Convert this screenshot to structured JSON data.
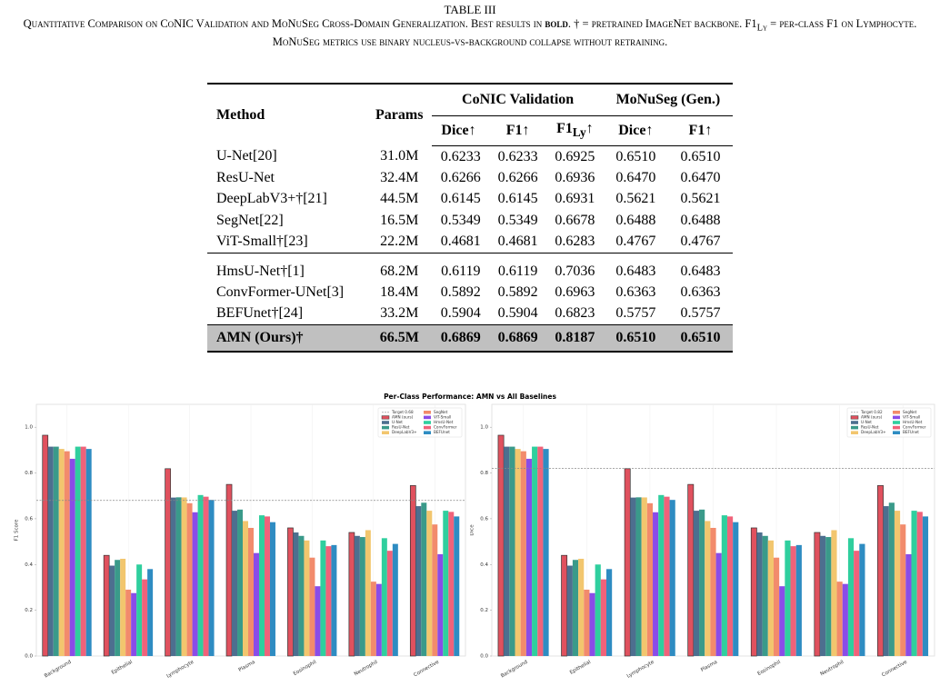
{
  "caption": {
    "label": "TABLE III",
    "segments": [
      "Quantitative Comparison on CoNIC Validation and MoNuSeg Cross-Domain Generalization. Best results in ",
      "bold",
      ". † = pretrained ImageNet backbone. F1",
      "Ly",
      " = per-class F1 on Lymphocyte. MoNuSeg metrics use binary nucleus-vs-background collapse without retraining."
    ]
  },
  "table": {
    "method": "Method",
    "params": "Params",
    "group1": "CoNIC Validation",
    "group2": "MoNuSeg (Gen.)",
    "sub": [
      "Dice↑",
      "F1↑",
      {
        "base": "F1",
        "sub": "Ly",
        "arrow": "↑"
      },
      "Dice↑",
      "F1↑"
    ],
    "groups": [
      [
        [
          "U-Net[20]",
          "31.0M",
          "0.6233",
          "0.6233",
          "0.6925",
          "0.6510",
          "0.6510"
        ],
        [
          "ResU-Net",
          "32.4M",
          "0.6266",
          "0.6266",
          "0.6936",
          "0.6470",
          "0.6470"
        ],
        [
          "DeepLabV3+†[21]",
          "44.5M",
          "0.6145",
          "0.6145",
          "0.6931",
          "0.5621",
          "0.5621"
        ],
        [
          "SegNet[22]",
          "16.5M",
          "0.5349",
          "0.5349",
          "0.6678",
          "0.6488",
          "0.6488"
        ],
        [
          "ViT-Small†[23]",
          "22.2M",
          "0.4681",
          "0.4681",
          "0.6283",
          "0.4767",
          "0.4767"
        ]
      ],
      [
        [
          "HmsU-Net†[1]",
          "68.2M",
          "0.6119",
          "0.6119",
          "0.7036",
          "0.6483",
          "0.6483"
        ],
        [
          "ConvFormer-UNet[3]",
          "18.4M",
          "0.5892",
          "0.5892",
          "0.6963",
          "0.6363",
          "0.6363"
        ],
        [
          "BEFUnet†[24]",
          "33.2M",
          "0.5904",
          "0.5904",
          "0.6823",
          "0.5757",
          "0.5757"
        ]
      ],
      [
        [
          "AMN (Ours)†",
          "66.5M",
          "0.6869",
          "0.6869",
          "0.8187",
          "0.6510",
          "0.6510"
        ]
      ]
    ]
  },
  "figure": {
    "title": "Per-Class Performance: AMN vs All Baselines"
  },
  "chart_data": [
    {
      "type": "bar",
      "ylabel": "F1 Score",
      "ylim": [
        0,
        1.1
      ],
      "yticks": [
        {
          "value": 0,
          "label": "0.0"
        },
        0.2,
        0.4,
        0.6,
        0.8,
        {
          "value": 1,
          "label": "1.0"
        }
      ],
      "target": {
        "name": "Target 0.68",
        "value": 0.68
      },
      "legend": "upper right",
      "categories": [
        "Background",
        "Epithelial",
        "Lymphocyte",
        "Plasma",
        "Eosinophil",
        "Neutrophil",
        "Connective"
      ],
      "series": [
        {
          "name": "AMN (ours)",
          "color": "#e0515e",
          "values": [
            0.965,
            0.44,
            0.8187,
            0.75,
            0.56,
            0.54,
            0.745
          ]
        },
        {
          "name": "U-Net",
          "color": "#4d6f8f",
          "values": [
            0.915,
            0.395,
            0.6925,
            0.635,
            0.54,
            0.525,
            0.655
          ]
        },
        {
          "name": "ResU-Net",
          "color": "#3a9a8a",
          "values": [
            0.915,
            0.42,
            0.6936,
            0.64,
            0.525,
            0.52,
            0.67
          ]
        },
        {
          "name": "DeepLabV3+",
          "color": "#f2c66e",
          "values": [
            0.905,
            0.425,
            0.6931,
            0.59,
            0.505,
            0.55,
            0.635
          ]
        },
        {
          "name": "SegNet",
          "color": "#f28b6c",
          "values": [
            0.895,
            0.29,
            0.6678,
            0.56,
            0.43,
            0.325,
            0.575
          ]
        },
        {
          "name": "ViT-Small",
          "color": "#8a4ce8",
          "values": [
            0.862,
            0.275,
            0.6283,
            0.45,
            0.305,
            0.315,
            0.445
          ]
        },
        {
          "name": "HmsU-Net",
          "color": "#2fcf9e",
          "values": [
            0.915,
            0.4,
            0.7036,
            0.615,
            0.505,
            0.515,
            0.635
          ]
        },
        {
          "name": "ConvFormer",
          "color": "#f0627a",
          "values": [
            0.915,
            0.335,
            0.6963,
            0.61,
            0.48,
            0.46,
            0.63
          ]
        },
        {
          "name": "BEFUnet",
          "color": "#2e8cc2",
          "values": [
            0.905,
            0.38,
            0.6823,
            0.585,
            0.485,
            0.49,
            0.61
          ]
        }
      ]
    },
    {
      "type": "bar",
      "ylabel": "Dice",
      "ylim": [
        0,
        1.1
      ],
      "yticks": [
        {
          "value": 0,
          "label": "0.0"
        },
        0.2,
        0.4,
        0.6,
        0.8,
        {
          "value": 1,
          "label": "1.0"
        }
      ],
      "target": {
        "name": "Target 0.82",
        "value": 0.82
      },
      "legend": "upper right",
      "categories": [
        "Background",
        "Epithelial",
        "Lymphocyte",
        "Plasma",
        "Eosinophil",
        "Neutrophil",
        "Connective"
      ],
      "series": [
        {
          "name": "AMN (ours)",
          "color": "#e0515e",
          "values": [
            0.965,
            0.44,
            0.8187,
            0.75,
            0.56,
            0.54,
            0.745
          ]
        },
        {
          "name": "U-Net",
          "color": "#4d6f8f",
          "values": [
            0.915,
            0.395,
            0.6925,
            0.635,
            0.54,
            0.525,
            0.655
          ]
        },
        {
          "name": "ResU-Net",
          "color": "#3a9a8a",
          "values": [
            0.915,
            0.42,
            0.6936,
            0.64,
            0.525,
            0.52,
            0.67
          ]
        },
        {
          "name": "DeepLabV3+",
          "color": "#f2c66e",
          "values": [
            0.905,
            0.425,
            0.6931,
            0.59,
            0.505,
            0.55,
            0.635
          ]
        },
        {
          "name": "SegNet",
          "color": "#f28b6c",
          "values": [
            0.895,
            0.29,
            0.6678,
            0.56,
            0.43,
            0.325,
            0.575
          ]
        },
        {
          "name": "ViT-Small",
          "color": "#8a4ce8",
          "values": [
            0.862,
            0.275,
            0.6283,
            0.45,
            0.305,
            0.315,
            0.445
          ]
        },
        {
          "name": "HmsU-Net",
          "color": "#2fcf9e",
          "values": [
            0.915,
            0.4,
            0.7036,
            0.615,
            0.505,
            0.515,
            0.635
          ]
        },
        {
          "name": "ConvFormer",
          "color": "#f0627a",
          "values": [
            0.915,
            0.335,
            0.6963,
            0.61,
            0.48,
            0.46,
            0.63
          ]
        },
        {
          "name": "BEFUnet",
          "color": "#2e8cc2",
          "values": [
            0.905,
            0.38,
            0.6823,
            0.585,
            0.485,
            0.49,
            0.61
          ]
        }
      ]
    }
  ]
}
